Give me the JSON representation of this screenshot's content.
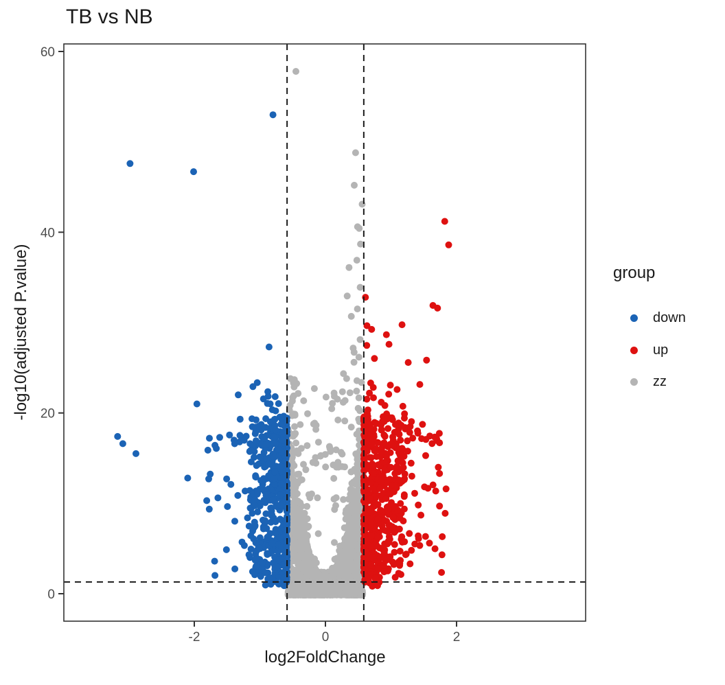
{
  "chart_data": {
    "type": "scatter",
    "subtype": "volcano-plot",
    "title": "TB vs NB",
    "xlabel": "log2FoldChange",
    "ylabel": "-log10(adjusted P.value)",
    "xlim": [
      -3.98,
      3.96
    ],
    "ylim": [
      -3,
      61
    ],
    "x_ticks": [
      {
        "value": -2,
        "label": "-2"
      },
      {
        "value": 0,
        "label": "0"
      },
      {
        "value": 2,
        "label": "2"
      }
    ],
    "y_ticks": [
      {
        "value": 0,
        "label": "0"
      },
      {
        "value": 20,
        "label": "20"
      },
      {
        "value": 40,
        "label": "40"
      },
      {
        "value": 60,
        "label": "60"
      }
    ],
    "grid": false,
    "panel_border": true,
    "legend": {
      "title": "group",
      "position": "right",
      "entries": [
        {
          "label": "down",
          "group": "down"
        },
        {
          "label": "up",
          "group": "up"
        },
        {
          "label": "zz",
          "group": "zz"
        }
      ]
    },
    "colors": {
      "down": "#1b63b5",
      "up": "#de1110",
      "zz": "#b4b4b4"
    },
    "text_colors": {
      "tick_labels": "#4d4d4d",
      "titles": "#1a1a1a"
    },
    "thresholds": {
      "vlines": [
        -0.585,
        0.585
      ],
      "hline": 1.301,
      "line_style": "dashed",
      "color": "#1a1a1a"
    },
    "point_radius_px": 5,
    "notable_points": [
      {
        "group": "zz",
        "x": -0.45,
        "y": 57.8
      },
      {
        "group": "zz",
        "x": 0.46,
        "y": 48.8
      },
      {
        "group": "zz",
        "x": 0.44,
        "y": 45.2
      },
      {
        "group": "zz",
        "x": 0.56,
        "y": 43.1
      },
      {
        "group": "zz",
        "x": 0.49,
        "y": 40.6
      },
      {
        "group": "zz",
        "x": 0.48,
        "y": 36.9
      },
      {
        "group": "zz",
        "x": 0.36,
        "y": 36.1
      },
      {
        "group": "zz",
        "x": 0.53,
        "y": 33.9
      },
      {
        "group": "down",
        "x": -2.98,
        "y": 47.6
      },
      {
        "group": "down",
        "x": -2.01,
        "y": 46.7
      },
      {
        "group": "down",
        "x": -0.8,
        "y": 53.0
      },
      {
        "group": "down",
        "x": -3.17,
        "y": 17.4
      },
      {
        "group": "down",
        "x": -3.09,
        "y": 16.6
      },
      {
        "group": "down",
        "x": -2.89,
        "y": 15.5
      },
      {
        "group": "down",
        "x": -1.77,
        "y": 17.2
      },
      {
        "group": "down",
        "x": -2.1,
        "y": 12.8
      },
      {
        "group": "down",
        "x": -1.78,
        "y": 12.7
      },
      {
        "group": "down",
        "x": -1.81,
        "y": 10.3
      },
      {
        "group": "down",
        "x": -1.64,
        "y": 10.6
      },
      {
        "group": "down",
        "x": -1.69,
        "y": 3.6
      },
      {
        "group": "down",
        "x": -1.96,
        "y": 21.0
      },
      {
        "group": "down",
        "x": -1.33,
        "y": 22.0
      },
      {
        "group": "down",
        "x": -0.86,
        "y": 27.3
      },
      {
        "group": "up",
        "x": 1.82,
        "y": 41.2
      },
      {
        "group": "up",
        "x": 1.88,
        "y": 38.6
      },
      {
        "group": "up",
        "x": 0.61,
        "y": 32.8
      },
      {
        "group": "up",
        "x": 1.71,
        "y": 31.6
      },
      {
        "group": "up",
        "x": 1.64,
        "y": 31.9
      },
      {
        "group": "up",
        "x": 0.97,
        "y": 27.6
      },
      {
        "group": "up",
        "x": 1.74,
        "y": 16.7
      },
      {
        "group": "up",
        "x": 1.74,
        "y": 13.3
      },
      {
        "group": "up",
        "x": 1.84,
        "y": 11.6
      },
      {
        "group": "up",
        "x": 1.74,
        "y": 9.7
      }
    ],
    "point_clouds": [
      {
        "group": "zz",
        "n": 1500,
        "x": {
          "min": -0.57,
          "max": 0.57
        },
        "y": {
          "min": -0.15,
          "max": 2.4,
          "pow": 1.7
        }
      },
      {
        "group": "zz",
        "n": 680,
        "x": {
          "min": -0.575,
          "max": -0.02
        },
        "y": {
          "min": 1.9,
          "max": 19.8
        },
        "env": [
          1.6,
          52,
          2
        ]
      },
      {
        "group": "zz",
        "n": 680,
        "x": {
          "min": 0.02,
          "max": 0.575
        },
        "y": {
          "min": 1.9,
          "max": 19.8
        },
        "env": [
          1.6,
          52,
          2
        ]
      },
      {
        "group": "zz",
        "n": 60,
        "x": {
          "min": -0.55,
          "max": -0.1,
          "pow": 1.6,
          "from": "min"
        },
        "y": {
          "min": 0,
          "max": 25,
          "pow": 2.2
        },
        "mode": "above",
        "env": [
          2,
          45,
          1.8
        ]
      },
      {
        "group": "zz",
        "n": 60,
        "x": {
          "min": 0.1,
          "max": 0.55,
          "pow": 1.6,
          "from": "max"
        },
        "y": {
          "min": 0,
          "max": 25,
          "pow": 2.2
        },
        "mode": "above",
        "env": [
          2,
          45,
          1.8
        ]
      },
      {
        "group": "zz",
        "n": 14,
        "x": {
          "min": 0.33,
          "max": 0.56
        },
        "y": {
          "min": 22,
          "max": 41,
          "pow": 1.4
        }
      },
      {
        "group": "zz",
        "n": 7,
        "x": {
          "min": -0.575,
          "max": -0.45
        },
        "y": {
          "min": 18,
          "max": 24
        }
      },
      {
        "group": "zz",
        "n": 25,
        "x": {
          "min": -0.2,
          "max": 0.3
        },
        "y": {
          "min": 14,
          "max": 24,
          "pow": 1.8
        }
      },
      {
        "group": "down",
        "n": 430,
        "x": {
          "min": -1.16,
          "max": -0.585,
          "pow": 2.4,
          "from": "max"
        },
        "y": {
          "min": 1.8,
          "max": 19.6
        }
      },
      {
        "group": "down",
        "n": 95,
        "x": {
          "min": -1.8,
          "max": -0.66,
          "pow": 2.0,
          "from": "max"
        },
        "y": {
          "min": 2,
          "max": 17.5
        }
      },
      {
        "group": "down",
        "n": 30,
        "x": {
          "min": -1.5,
          "max": -0.63,
          "pow": 1.6,
          "from": "max"
        },
        "y": {
          "min": 16.5,
          "max": 24,
          "pow": 2.2
        }
      },
      {
        "group": "down",
        "n": 20,
        "x": {
          "min": -0.95,
          "max": -0.59,
          "pow": 2,
          "from": "max"
        },
        "y": {
          "min": 0.8,
          "max": 1.9
        }
      },
      {
        "group": "up",
        "n": 440,
        "x": {
          "min": 0.585,
          "max": 1.22,
          "pow": 2.4,
          "from": "min"
        },
        "y": {
          "min": 1.8,
          "max": 20
        }
      },
      {
        "group": "up",
        "n": 110,
        "x": {
          "min": 0.68,
          "max": 1.86,
          "pow": 2.0,
          "from": "min"
        },
        "y": {
          "min": 2,
          "max": 18
        }
      },
      {
        "group": "up",
        "n": 48,
        "x": {
          "min": 0.63,
          "max": 1.72,
          "pow": 1.6,
          "from": "min"
        },
        "y": {
          "min": 16.5,
          "max": 30.5,
          "pow": 2.3
        }
      },
      {
        "group": "up",
        "n": 14,
        "x": {
          "min": 0.6,
          "max": 0.9,
          "pow": 2,
          "from": "min"
        },
        "y": {
          "min": 0.8,
          "max": 1.9
        }
      }
    ]
  }
}
